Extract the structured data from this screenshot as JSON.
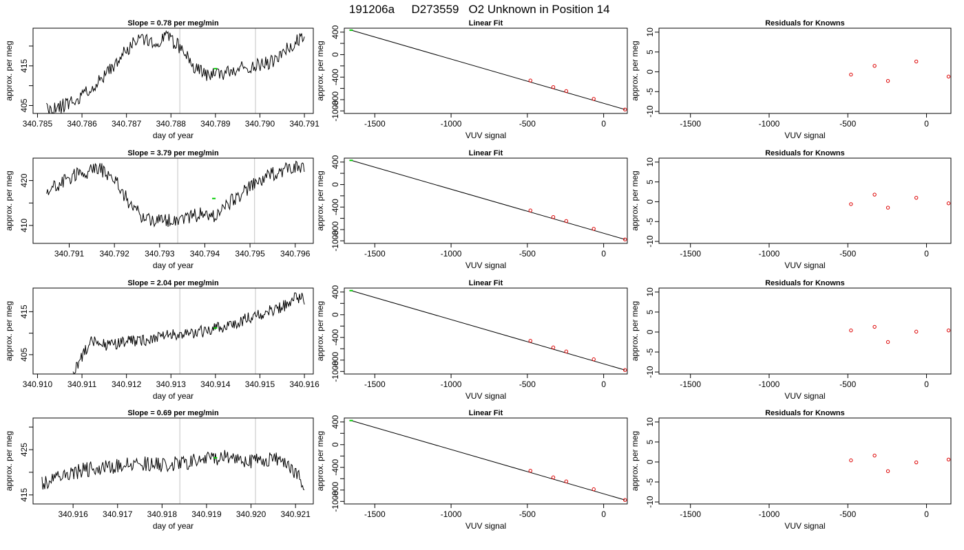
{
  "figure": {
    "title_run": "191206a",
    "title_sample": "D273559",
    "title_desc": "O2 Unknown in Position  14"
  },
  "colors": {
    "trace": "#000000",
    "marker_green": "#00cc00",
    "residual_red": "#dd0000",
    "vline": "#cccccc"
  },
  "chart_data": [
    {
      "type": "line",
      "title": "Slope =  0.78  per meg/min",
      "xlabel": "day of year",
      "ylabel": "approx. per meg",
      "xlim": [
        340.7849,
        340.7912
      ],
      "ylim": [
        403,
        424.5
      ],
      "xticks": [
        340.785,
        340.786,
        340.787,
        340.788,
        340.789,
        340.79,
        340.791
      ],
      "xtick_labels": [
        "340.785",
        "340.786",
        "340.787",
        "340.788",
        "340.789",
        "340.790",
        "340.791"
      ],
      "yticks": [
        405,
        410,
        415,
        420
      ],
      "ytick_labels": [
        "405",
        "",
        "415",
        ""
      ],
      "vlines": [
        340.7882,
        340.7899
      ],
      "x_start": 340.7852,
      "x_end": 340.791,
      "anchors": [
        [
          340.7852,
          404.0
        ],
        [
          340.7855,
          404.5
        ],
        [
          340.786,
          407.5
        ],
        [
          340.7865,
          412.0
        ],
        [
          340.787,
          419.0
        ],
        [
          340.7873,
          422.5
        ],
        [
          340.7876,
          420.5
        ],
        [
          340.7879,
          423.0
        ],
        [
          340.7882,
          419.5
        ],
        [
          340.7885,
          415.0
        ],
        [
          340.7888,
          413.0
        ],
        [
          340.7892,
          413.0
        ],
        [
          340.7895,
          414.5
        ],
        [
          340.7899,
          415.0
        ],
        [
          340.7903,
          416.0
        ],
        [
          340.7907,
          420.0
        ],
        [
          340.791,
          422.5
        ]
      ],
      "noise": 1.8,
      "seed": 11,
      "marker": [
        340.789,
        414.3
      ]
    },
    {
      "type": "scatter",
      "title": "Linear Fit",
      "xlabel": "VUV signal",
      "ylabel": "approx. per meg",
      "xlim": [
        -1700,
        155
      ],
      "ylim": [
        -1045,
        470
      ],
      "xticks": [
        -1500,
        -1000,
        -500,
        0
      ],
      "xtick_labels": [
        "-1500",
        "-1000",
        "-500",
        "0"
      ],
      "yticks": [
        400,
        200,
        0,
        -200,
        -400,
        -600,
        -800,
        -1000
      ],
      "ytick_labels": [
        "400",
        "",
        "0",
        "",
        "-400",
        "",
        "-800",
        "-1000"
      ],
      "fit_line": [
        [
          -1655,
          435
        ],
        [
          140,
          -975
        ]
      ],
      "knowns": [
        [
          -480,
          -460
        ],
        [
          -330,
          -577
        ],
        [
          -245,
          -648
        ],
        [
          -65,
          -786
        ],
        [
          140,
          -975
        ]
      ],
      "unknown": [
        -1655,
        435
      ]
    },
    {
      "type": "scatter",
      "title": "Residuals for Knowns",
      "xlabel": "VUV signal",
      "ylabel": "approx. per meg",
      "xlim": [
        -1700,
        155
      ],
      "ylim": [
        -10.5,
        11
      ],
      "xticks": [
        -1500,
        -1000,
        -500,
        0
      ],
      "xtick_labels": [
        "-1500",
        "-1000",
        "-500",
        "0"
      ],
      "yticks": [
        10,
        5,
        0,
        -5,
        -10
      ],
      "ytick_labels": [
        "10",
        "5",
        "0",
        "-5",
        "-10"
      ],
      "points": [
        [
          -480,
          -0.7
        ],
        [
          -330,
          1.5
        ],
        [
          -245,
          -2.3
        ],
        [
          -65,
          2.6
        ],
        [
          140,
          -1.2
        ]
      ]
    },
    {
      "type": "line",
      "title": "Slope =  3.79  per meg/min",
      "xlabel": "day of year",
      "ylabel": "approx. per meg",
      "xlim": [
        340.7902,
        340.7964
      ],
      "ylim": [
        406,
        425
      ],
      "xticks": [
        340.791,
        340.792,
        340.793,
        340.794,
        340.795,
        340.796
      ],
      "xtick_labels": [
        "340.791",
        "340.792",
        "340.793",
        "340.794",
        "340.795",
        "340.796"
      ],
      "yticks": [
        410,
        415,
        420
      ],
      "ytick_labels": [
        "410",
        "",
        "420"
      ],
      "vlines": [
        340.7934,
        340.7951
      ],
      "x_start": 340.7905,
      "x_end": 340.7962,
      "anchors": [
        [
          340.7905,
          417.5
        ],
        [
          340.7908,
          419.5
        ],
        [
          340.7912,
          421.5
        ],
        [
          340.7917,
          422.5
        ],
        [
          340.792,
          420.5
        ],
        [
          340.7923,
          415.5
        ],
        [
          340.7926,
          412.0
        ],
        [
          340.793,
          411.0
        ],
        [
          340.7934,
          411.5
        ],
        [
          340.7939,
          412.5
        ],
        [
          340.7942,
          412.0
        ],
        [
          340.7946,
          415.5
        ],
        [
          340.795,
          418.5
        ],
        [
          340.7955,
          421.5
        ],
        [
          340.7959,
          423.0
        ],
        [
          340.7962,
          422.5
        ]
      ],
      "noise": 1.6,
      "seed": 23,
      "marker": [
        340.7942,
        416.0
      ]
    },
    {
      "type": "scatter",
      "title": "Linear Fit",
      "xlabel": "VUV signal",
      "ylabel": "approx. per meg",
      "xlim": [
        -1700,
        155
      ],
      "ylim": [
        -1045,
        470
      ],
      "xticks": [
        -1500,
        -1000,
        -500,
        0
      ],
      "xtick_labels": [
        "-1500",
        "-1000",
        "-500",
        "0"
      ],
      "yticks": [
        400,
        200,
        0,
        -200,
        -400,
        -600,
        -800,
        -1000
      ],
      "ytick_labels": [
        "400",
        "",
        "0",
        "",
        "-400",
        "",
        "-800",
        "-1000"
      ],
      "fit_line": [
        [
          -1655,
          430
        ],
        [
          140,
          -975
        ]
      ],
      "knowns": [
        [
          -480,
          -460
        ],
        [
          -330,
          -577
        ],
        [
          -245,
          -648
        ],
        [
          -65,
          -786
        ],
        [
          140,
          -975
        ]
      ],
      "unknown": [
        -1655,
        430
      ]
    },
    {
      "type": "scatter",
      "title": "Residuals for Knowns",
      "xlabel": "VUV signal",
      "ylabel": "approx. per meg",
      "xlim": [
        -1700,
        155
      ],
      "ylim": [
        -10.5,
        11
      ],
      "xticks": [
        -1500,
        -1000,
        -500,
        0
      ],
      "xtick_labels": [
        "-1500",
        "-1000",
        "-500",
        "0"
      ],
      "yticks": [
        10,
        5,
        0,
        -5,
        -10
      ],
      "ytick_labels": [
        "10",
        "5",
        "0",
        "-5",
        "-10"
      ],
      "points": [
        [
          -480,
          -0.6
        ],
        [
          -330,
          1.8
        ],
        [
          -245,
          -1.5
        ],
        [
          -65,
          1.0
        ],
        [
          140,
          -0.4
        ]
      ]
    },
    {
      "type": "line",
      "title": "Slope =  2.04  per meg/min",
      "xlabel": "day of year",
      "ylabel": "approx. per meg",
      "xlim": [
        340.9099,
        340.9162
      ],
      "ylim": [
        400.5,
        420.5
      ],
      "xticks": [
        340.91,
        340.911,
        340.912,
        340.913,
        340.914,
        340.915,
        340.916
      ],
      "xtick_labels": [
        "340.910",
        "340.911",
        "340.912",
        "340.913",
        "340.914",
        "340.915",
        "340.916"
      ],
      "yticks": [
        405,
        410,
        415
      ],
      "ytick_labels": [
        "405",
        "",
        "415"
      ],
      "vlines": [
        340.9132,
        340.9149
      ],
      "x_start": 340.9108,
      "x_end": 340.916,
      "anchors": [
        [
          340.9108,
          400.5
        ],
        [
          340.911,
          404.5
        ],
        [
          340.9112,
          408.0
        ],
        [
          340.9116,
          407.0
        ],
        [
          340.912,
          408.0
        ],
        [
          340.9125,
          408.5
        ],
        [
          340.913,
          409.5
        ],
        [
          340.9135,
          410.0
        ],
        [
          340.914,
          411.0
        ],
        [
          340.9145,
          412.5
        ],
        [
          340.915,
          414.5
        ],
        [
          340.9155,
          416.0
        ],
        [
          340.9158,
          418.5
        ],
        [
          340.916,
          418.0
        ]
      ],
      "noise": 1.4,
      "seed": 37,
      "marker": [
        340.914,
        411.2
      ]
    },
    {
      "type": "scatter",
      "title": "Linear Fit",
      "xlabel": "VUV signal",
      "ylabel": "approx. per meg",
      "xlim": [
        -1700,
        155
      ],
      "ylim": [
        -1045,
        470
      ],
      "xticks": [
        -1500,
        -1000,
        -500,
        0
      ],
      "xtick_labels": [
        "-1500",
        "-1000",
        "-500",
        "0"
      ],
      "yticks": [
        400,
        200,
        0,
        -200,
        -400,
        -600,
        -800,
        -1000
      ],
      "ytick_labels": [
        "400",
        "",
        "0",
        "",
        "-400",
        "",
        "-800",
        "-1000"
      ],
      "fit_line": [
        [
          -1655,
          425
        ],
        [
          140,
          -975
        ]
      ],
      "knowns": [
        [
          -480,
          -460
        ],
        [
          -330,
          -577
        ],
        [
          -245,
          -648
        ],
        [
          -65,
          -786
        ],
        [
          140,
          -975
        ]
      ],
      "unknown": [
        -1655,
        425
      ]
    },
    {
      "type": "scatter",
      "title": "Residuals for Knowns",
      "xlabel": "VUV signal",
      "ylabel": "approx. per meg",
      "xlim": [
        -1700,
        155
      ],
      "ylim": [
        -10.5,
        11
      ],
      "xticks": [
        -1500,
        -1000,
        -500,
        0
      ],
      "xtick_labels": [
        "-1500",
        "-1000",
        "-500",
        "0"
      ],
      "yticks": [
        10,
        5,
        0,
        -5,
        -10
      ],
      "ytick_labels": [
        "10",
        "5",
        "0",
        "-5",
        "-10"
      ],
      "points": [
        [
          -480,
          0.4
        ],
        [
          -330,
          1.3
        ],
        [
          -245,
          -2.5
        ],
        [
          -65,
          0.1
        ],
        [
          140,
          0.4
        ]
      ]
    },
    {
      "type": "line",
      "title": "Slope =  0.69  per meg/min",
      "xlabel": "day of year",
      "ylabel": "approx. per meg",
      "xlim": [
        340.9151,
        340.9214
      ],
      "ylim": [
        413,
        432
      ],
      "xticks": [
        340.916,
        340.917,
        340.918,
        340.919,
        340.92,
        340.921
      ],
      "xtick_labels": [
        "340.916",
        "340.917",
        "340.918",
        "340.919",
        "340.920",
        "340.921"
      ],
      "yticks": [
        415,
        420,
        425,
        430
      ],
      "ytick_labels": [
        "415",
        "",
        "425",
        ""
      ],
      "vlines": [
        340.9184,
        340.9201
      ],
      "x_start": 340.9153,
      "x_end": 340.9212,
      "anchors": [
        [
          340.9153,
          417.5
        ],
        [
          340.9156,
          418.5
        ],
        [
          340.916,
          420.0
        ],
        [
          340.9165,
          421.0
        ],
        [
          340.917,
          421.5
        ],
        [
          340.9175,
          422.0
        ],
        [
          340.918,
          421.5
        ],
        [
          340.9185,
          422.0
        ],
        [
          340.919,
          423.0
        ],
        [
          340.9195,
          423.5
        ],
        [
          340.92,
          422.5
        ],
        [
          340.9205,
          423.0
        ],
        [
          340.9208,
          422.5
        ],
        [
          340.9211,
          418.5
        ],
        [
          340.9212,
          415.5
        ]
      ],
      "noise": 1.7,
      "seed": 53,
      "marker": [
        340.9192,
        423.2
      ]
    },
    {
      "type": "scatter",
      "title": "Linear Fit",
      "xlabel": "VUV signal",
      "ylabel": "approx. per meg",
      "xlim": [
        -1700,
        155
      ],
      "ylim": [
        -1045,
        470
      ],
      "xticks": [
        -1500,
        -1000,
        -500,
        0
      ],
      "xtick_labels": [
        "-1500",
        "-1000",
        "-500",
        "0"
      ],
      "yticks": [
        400,
        200,
        0,
        -200,
        -400,
        -600,
        -800,
        -1000
      ],
      "ytick_labels": [
        "400",
        "",
        "0",
        "",
        "-400",
        "",
        "-800",
        "-1000"
      ],
      "fit_line": [
        [
          -1655,
          425
        ],
        [
          140,
          -975
        ]
      ],
      "knowns": [
        [
          -480,
          -460
        ],
        [
          -330,
          -577
        ],
        [
          -245,
          -648
        ],
        [
          -65,
          -786
        ],
        [
          140,
          -975
        ]
      ],
      "unknown": [
        -1655,
        425
      ]
    },
    {
      "type": "scatter",
      "title": "Residuals for Knowns",
      "xlabel": "VUV signal",
      "ylabel": "approx. per meg",
      "xlim": [
        -1700,
        155
      ],
      "ylim": [
        -10.5,
        11
      ],
      "xticks": [
        -1500,
        -1000,
        -500,
        0
      ],
      "xtick_labels": [
        "-1500",
        "-1000",
        "-500",
        "0"
      ],
      "yticks": [
        10,
        5,
        0,
        -5,
        -10
      ],
      "ytick_labels": [
        "10",
        "5",
        "0",
        "-5",
        "-10"
      ],
      "points": [
        [
          -480,
          0.4
        ],
        [
          -330,
          1.6
        ],
        [
          -245,
          -2.3
        ],
        [
          -65,
          -0.1
        ],
        [
          140,
          0.6
        ]
      ]
    }
  ]
}
